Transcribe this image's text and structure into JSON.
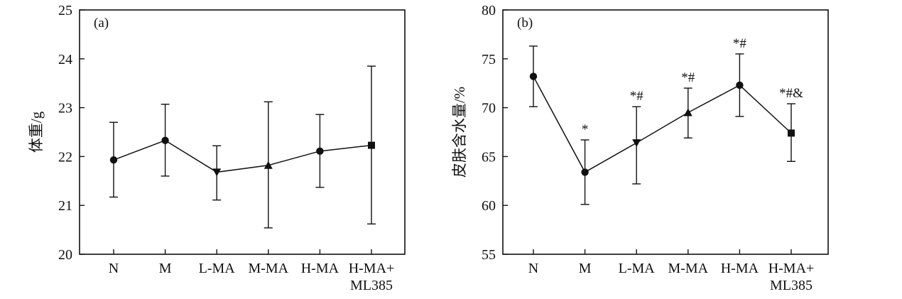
{
  "chart_data": [
    {
      "type": "line",
      "panel_label": "(a)",
      "ylabel": "体重/g",
      "xlabel": "",
      "ylim": [
        20,
        25
      ],
      "yticks": [
        20,
        21,
        22,
        23,
        24,
        25
      ],
      "categories": [
        [
          "N"
        ],
        [
          "M"
        ],
        [
          "L-MA"
        ],
        [
          "M-MA"
        ],
        [
          "H-MA"
        ],
        [
          "H-MA+",
          "ML385"
        ]
      ],
      "markers": [
        "circle",
        "circle",
        "triangle-down",
        "triangle-up",
        "circle",
        "square"
      ],
      "values": [
        21.93,
        22.33,
        21.68,
        21.82,
        22.11,
        22.23
      ],
      "error_low": [
        21.17,
        21.6,
        21.11,
        20.54,
        21.37,
        20.62
      ],
      "error_high": [
        22.7,
        23.07,
        22.22,
        23.12,
        22.86,
        23.85
      ],
      "annotations": [
        "",
        "",
        "",
        "",
        "",
        ""
      ]
    },
    {
      "type": "line",
      "panel_label": "(b)",
      "ylabel": "皮肤含水量/%",
      "xlabel": "",
      "ylim": [
        55,
        80
      ],
      "yticks": [
        55,
        60,
        65,
        70,
        75,
        80
      ],
      "categories": [
        [
          "N"
        ],
        [
          "M"
        ],
        [
          "L-MA"
        ],
        [
          "M-MA"
        ],
        [
          "H-MA"
        ],
        [
          "H-MA+",
          "ML385"
        ]
      ],
      "markers": [
        "circle",
        "circle",
        "triangle-down",
        "triangle-up",
        "circle",
        "square"
      ],
      "values": [
        73.2,
        63.4,
        66.4,
        69.5,
        72.3,
        67.4
      ],
      "error_low": [
        70.1,
        60.1,
        62.2,
        66.9,
        69.1,
        64.5
      ],
      "error_high": [
        76.3,
        66.7,
        70.1,
        72.0,
        75.5,
        70.4
      ],
      "annotations": [
        "",
        "*",
        "*#",
        "*#",
        "*#",
        "*#&"
      ]
    }
  ]
}
